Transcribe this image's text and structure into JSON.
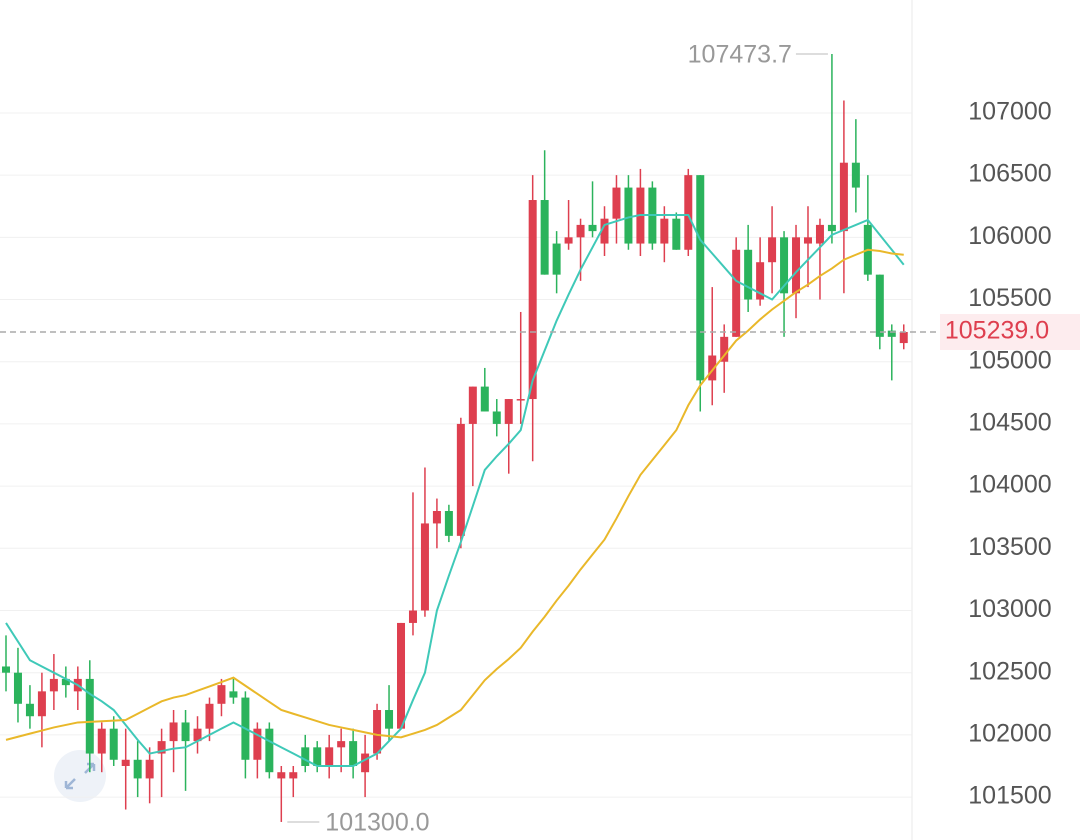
{
  "chart_data": {
    "type": "candlestick",
    "open": [
      102550,
      102500,
      102250,
      102150,
      102350,
      102450,
      102350,
      102450,
      101850,
      102050,
      101750,
      101800,
      101650,
      101850,
      101950,
      102100,
      101950,
      102050,
      102250,
      102350,
      102300,
      101800,
      102050,
      101650,
      101650,
      101900,
      101900,
      101750,
      101900,
      101950,
      101700,
      101850,
      102200,
      102050,
      102900,
      103000,
      103700,
      103800,
      103600,
      104500,
      104800,
      104600,
      104500,
      104700,
      104700,
      106300,
      105950,
      105950,
      106000,
      106100,
      105950,
      106150,
      106400,
      105950,
      106400,
      105950,
      106150,
      105900,
      106500,
      104850,
      105000,
      105200,
      105900,
      105500,
      105800,
      106000,
      105550,
      105950,
      105950,
      106100,
      106050,
      106600,
      106100,
      105700,
      105250,
      105150
    ],
    "high": [
      102800,
      102700,
      102400,
      102500,
      102650,
      102550,
      102550,
      102600,
      102100,
      102150,
      102050,
      101950,
      101900,
      102050,
      102200,
      102200,
      102150,
      102300,
      102450,
      102450,
      102350,
      102100,
      102100,
      101750,
      101750,
      102000,
      101950,
      102000,
      102050,
      102050,
      102000,
      102250,
      102400,
      102900,
      103950,
      104150,
      103900,
      103850,
      104550,
      104800,
      104950,
      104700,
      104700,
      105400,
      106500,
      106700,
      106050,
      106300,
      106150,
      106450,
      106250,
      106500,
      106500,
      106550,
      106450,
      106250,
      106200,
      106550,
      106500,
      105600,
      105300,
      106000,
      106100,
      106000,
      106250,
      106050,
      106100,
      106250,
      106150,
      107473.7,
      107100,
      106950,
      106500,
      105700,
      105300,
      105300
    ],
    "low": [
      102350,
      102100,
      102050,
      101900,
      102200,
      102300,
      102200,
      101700,
      101700,
      101750,
      101400,
      101500,
      101450,
      101500,
      101700,
      101550,
      101850,
      101950,
      102150,
      102250,
      101650,
      101650,
      101650,
      101300,
      101500,
      101700,
      101700,
      101650,
      101700,
      101650,
      101500,
      101800,
      101950,
      102050,
      102800,
      102950,
      103500,
      103550,
      103500,
      104000,
      104600,
      104400,
      104100,
      104500,
      104200,
      105700,
      105550,
      105900,
      105650,
      106000,
      105850,
      105950,
      105900,
      105850,
      105900,
      105800,
      105900,
      105850,
      104600,
      104650,
      104750,
      105200,
      105400,
      105450,
      105550,
      105200,
      105350,
      105600,
      105500,
      105950,
      105550,
      106200,
      105650,
      105100,
      104850,
      105100
    ],
    "close": [
      102500,
      102250,
      102150,
      102350,
      102450,
      102400,
      102450,
      101850,
      102050,
      101800,
      101800,
      101650,
      101800,
      101950,
      102100,
      101950,
      102050,
      102250,
      102400,
      102300,
      101800,
      102050,
      101700,
      101700,
      101700,
      101750,
      101750,
      101900,
      101950,
      101750,
      101850,
      102200,
      102050,
      102900,
      103000,
      103700,
      103800,
      103600,
      104500,
      104800,
      104600,
      104500,
      104700,
      104700,
      106300,
      105700,
      105700,
      106000,
      106100,
      106050,
      106150,
      106400,
      105950,
      106400,
      105950,
      106150,
      105900,
      106500,
      104850,
      105050,
      105200,
      105900,
      105500,
      105800,
      106000,
      105550,
      106000,
      106000,
      106100,
      106050,
      106600,
      106400,
      105700,
      105200,
      105200,
      105239
    ],
    "up_color": "#de3f4f",
    "down_color": "#2bb35c",
    "lines": [
      {
        "color": "#3fc9b8",
        "values": [
          102900,
          102750,
          102600,
          102550,
          102500,
          102450,
          102400,
          102330,
          102270,
          102200,
          102080,
          101960,
          101850,
          101870,
          101890,
          101900,
          101950,
          102000,
          102050,
          102100,
          102050,
          102000,
          101950,
          101900,
          101850,
          101800,
          101750,
          101750,
          101750,
          101750,
          101800,
          101850,
          101950,
          102050,
          102280,
          102500,
          103000,
          103280,
          103550,
          103840,
          104130,
          104240,
          104340,
          104450,
          104850,
          105090,
          105330,
          105540,
          105740,
          105920,
          106100,
          106130,
          106160,
          106180,
          106180,
          106180,
          106180,
          106180,
          105980,
          105870,
          105760,
          105650,
          105600,
          105550,
          105500,
          105610,
          105720,
          105820,
          105920,
          106020,
          106060,
          106100,
          106140,
          106020,
          105900,
          105780
        ]
      },
      {
        "color": "#e9b82a",
        "values": [
          101960,
          101985,
          102010,
          102035,
          102060,
          102080,
          102100,
          102105,
          102110,
          102115,
          102120,
          102170,
          102220,
          102270,
          102300,
          102320,
          102355,
          102390,
          102425,
          102460,
          102395,
          102330,
          102265,
          102200,
          102170,
          102140,
          102110,
          102080,
          102060,
          102040,
          102020,
          102000,
          101990,
          101980,
          102010,
          102040,
          102080,
          102140,
          102200,
          102320,
          102440,
          102530,
          102610,
          102700,
          102830,
          102950,
          103080,
          103200,
          103330,
          103450,
          103570,
          103740,
          103920,
          104090,
          104210,
          104330,
          104450,
          104650,
          104810,
          104930,
          105050,
          105170,
          105250,
          105340,
          105420,
          105490,
          105560,
          105620,
          105690,
          105750,
          105820,
          105860,
          105900,
          105890,
          105870,
          105860
        ]
      }
    ],
    "ylim": [
      101155,
      107908
    ],
    "yticks": [
      101500,
      102000,
      102500,
      103000,
      103500,
      104000,
      104500,
      105000,
      105500,
      106000,
      106500,
      107000
    ],
    "grid": true,
    "last_price": {
      "value": 105239,
      "label": "105239.0"
    },
    "max_annotation": {
      "value": 107473.7,
      "label": "107473.7"
    },
    "min_annotation": {
      "value": 101300,
      "label": "101300.0"
    }
  }
}
